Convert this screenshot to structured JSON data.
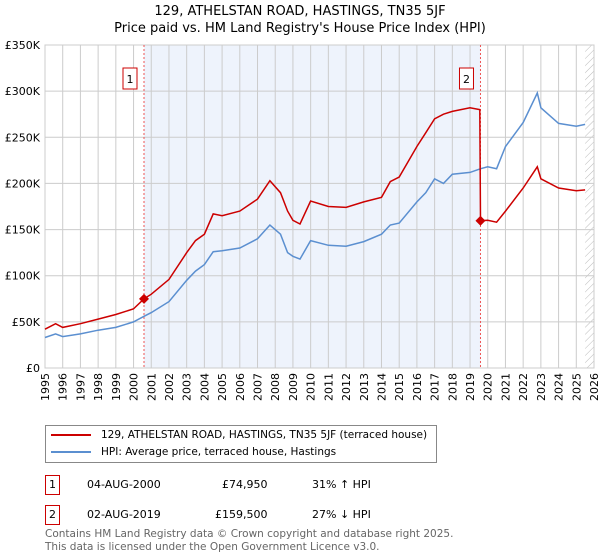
{
  "title_line1": "129, ATHELSTAN ROAD, HASTINGS, TN35 5JF",
  "title_line2": "Price paid vs. HM Land Registry's House Price Index (HPI)",
  "chart_data": {
    "type": "line",
    "title": "129, ATHELSTAN ROAD, HASTINGS, TN35 5JF — Price paid vs. HM Land Registry's House Price Index (HPI)",
    "xlim": [
      1995,
      2026
    ],
    "ylim": [
      0,
      350000
    ],
    "xticks": [
      "1995",
      "1996",
      "1997",
      "1998",
      "1999",
      "2000",
      "2001",
      "2002",
      "2003",
      "2004",
      "2005",
      "2006",
      "2007",
      "2008",
      "2009",
      "2010",
      "2011",
      "2012",
      "2013",
      "2014",
      "2015",
      "2016",
      "2017",
      "2018",
      "2019",
      "2020",
      "2021",
      "2022",
      "2023",
      "2024",
      "2025",
      "2026"
    ],
    "yticks": [
      {
        "v": 0,
        "label": "£0"
      },
      {
        "v": 50000,
        "label": "£50K"
      },
      {
        "v": 100000,
        "label": "£100K"
      },
      {
        "v": 150000,
        "label": "£150K"
      },
      {
        "v": 200000,
        "label": "£200K"
      },
      {
        "v": 250000,
        "label": "£250K"
      },
      {
        "v": 300000,
        "label": "£300K"
      },
      {
        "v": 350000,
        "label": "£350K"
      }
    ],
    "grid": true,
    "series": [
      {
        "name": "129, ATHELSTAN ROAD, HASTINGS, TN35 5JF (terraced house)",
        "color": "#cc0000",
        "x": [
          1995,
          1995.6,
          1996,
          1997,
          1998,
          1999,
          2000,
          2000.59,
          2001,
          2002,
          2003,
          2003.5,
          2004,
          2004.5,
          2005,
          2006,
          2007,
          2007.7,
          2008.3,
          2008.7,
          2009,
          2009.4,
          2010,
          2011,
          2012,
          2013,
          2014,
          2014.5,
          2015,
          2016,
          2016.5,
          2017,
          2017.5,
          2018,
          2019,
          2019.55,
          2019.59,
          2020,
          2020.5,
          2021,
          2022,
          2022.8,
          2023,
          2024,
          2025,
          2025.5
        ],
        "y": [
          42000,
          48000,
          44000,
          48000,
          53000,
          58000,
          64000,
          74950,
          80000,
          96000,
          125000,
          138000,
          145000,
          167000,
          165000,
          170000,
          183000,
          203000,
          190000,
          170000,
          160000,
          156000,
          181000,
          175000,
          174000,
          180000,
          185000,
          202000,
          207000,
          240000,
          255000,
          270000,
          275000,
          278000,
          282000,
          280000,
          159500,
          160000,
          158000,
          170000,
          195000,
          218000,
          205000,
          195000,
          192000,
          193000
        ]
      },
      {
        "name": "HPI: Average price, terraced house, Hastings",
        "color": "#5b8fd0",
        "x": [
          1995,
          1995.6,
          1996,
          1997,
          1998,
          1999,
          2000,
          2000.59,
          2001,
          2002,
          2003,
          2003.5,
          2004,
          2004.5,
          2005,
          2006,
          2007,
          2007.7,
          2008.3,
          2008.7,
          2009,
          2009.4,
          2010,
          2011,
          2012,
          2013,
          2014,
          2014.5,
          2015,
          2016,
          2016.5,
          2017,
          2017.5,
          2018,
          2019,
          2019.6,
          2020,
          2020.5,
          2021,
          2022,
          2022.8,
          2023,
          2024,
          2025,
          2025.5
        ],
        "y": [
          33000,
          37000,
          34000,
          37000,
          41000,
          44000,
          50000,
          56000,
          60000,
          72000,
          95000,
          105000,
          112000,
          126000,
          127000,
          130000,
          140000,
          155000,
          145000,
          125000,
          121000,
          118000,
          138000,
          133000,
          132000,
          137000,
          145000,
          155000,
          157000,
          180000,
          190000,
          205000,
          200000,
          210000,
          212000,
          216000,
          218000,
          216000,
          240000,
          266000,
          298000,
          282000,
          265000,
          262000,
          264000
        ]
      }
    ],
    "annotations": [
      {
        "label": "1",
        "x": 2000.59,
        "y": 74950
      },
      {
        "label": "2",
        "x": 2019.59,
        "y": 159500
      }
    ],
    "shaded_range": [
      2000.59,
      2019.59
    ],
    "hatched_from": 2025.5,
    "legend_placement": "below"
  },
  "legend": {
    "items": [
      {
        "label": "129, ATHELSTAN ROAD, HASTINGS, TN35 5JF (terraced house)",
        "color": "#cc0000"
      },
      {
        "label": "HPI: Average price, terraced house, Hastings",
        "color": "#5b8fd0"
      }
    ]
  },
  "transactions": [
    {
      "num": "1",
      "date": "04-AUG-2000",
      "price": "£74,950",
      "hpi": "31% ↑ HPI"
    },
    {
      "num": "2",
      "date": "02-AUG-2019",
      "price": "£159,500",
      "hpi": "27% ↓ HPI"
    }
  ],
  "footer": {
    "line1": "Contains HM Land Registry data © Crown copyright and database right 2025.",
    "line2": "This data is licensed under the Open Government Licence v3.0."
  }
}
